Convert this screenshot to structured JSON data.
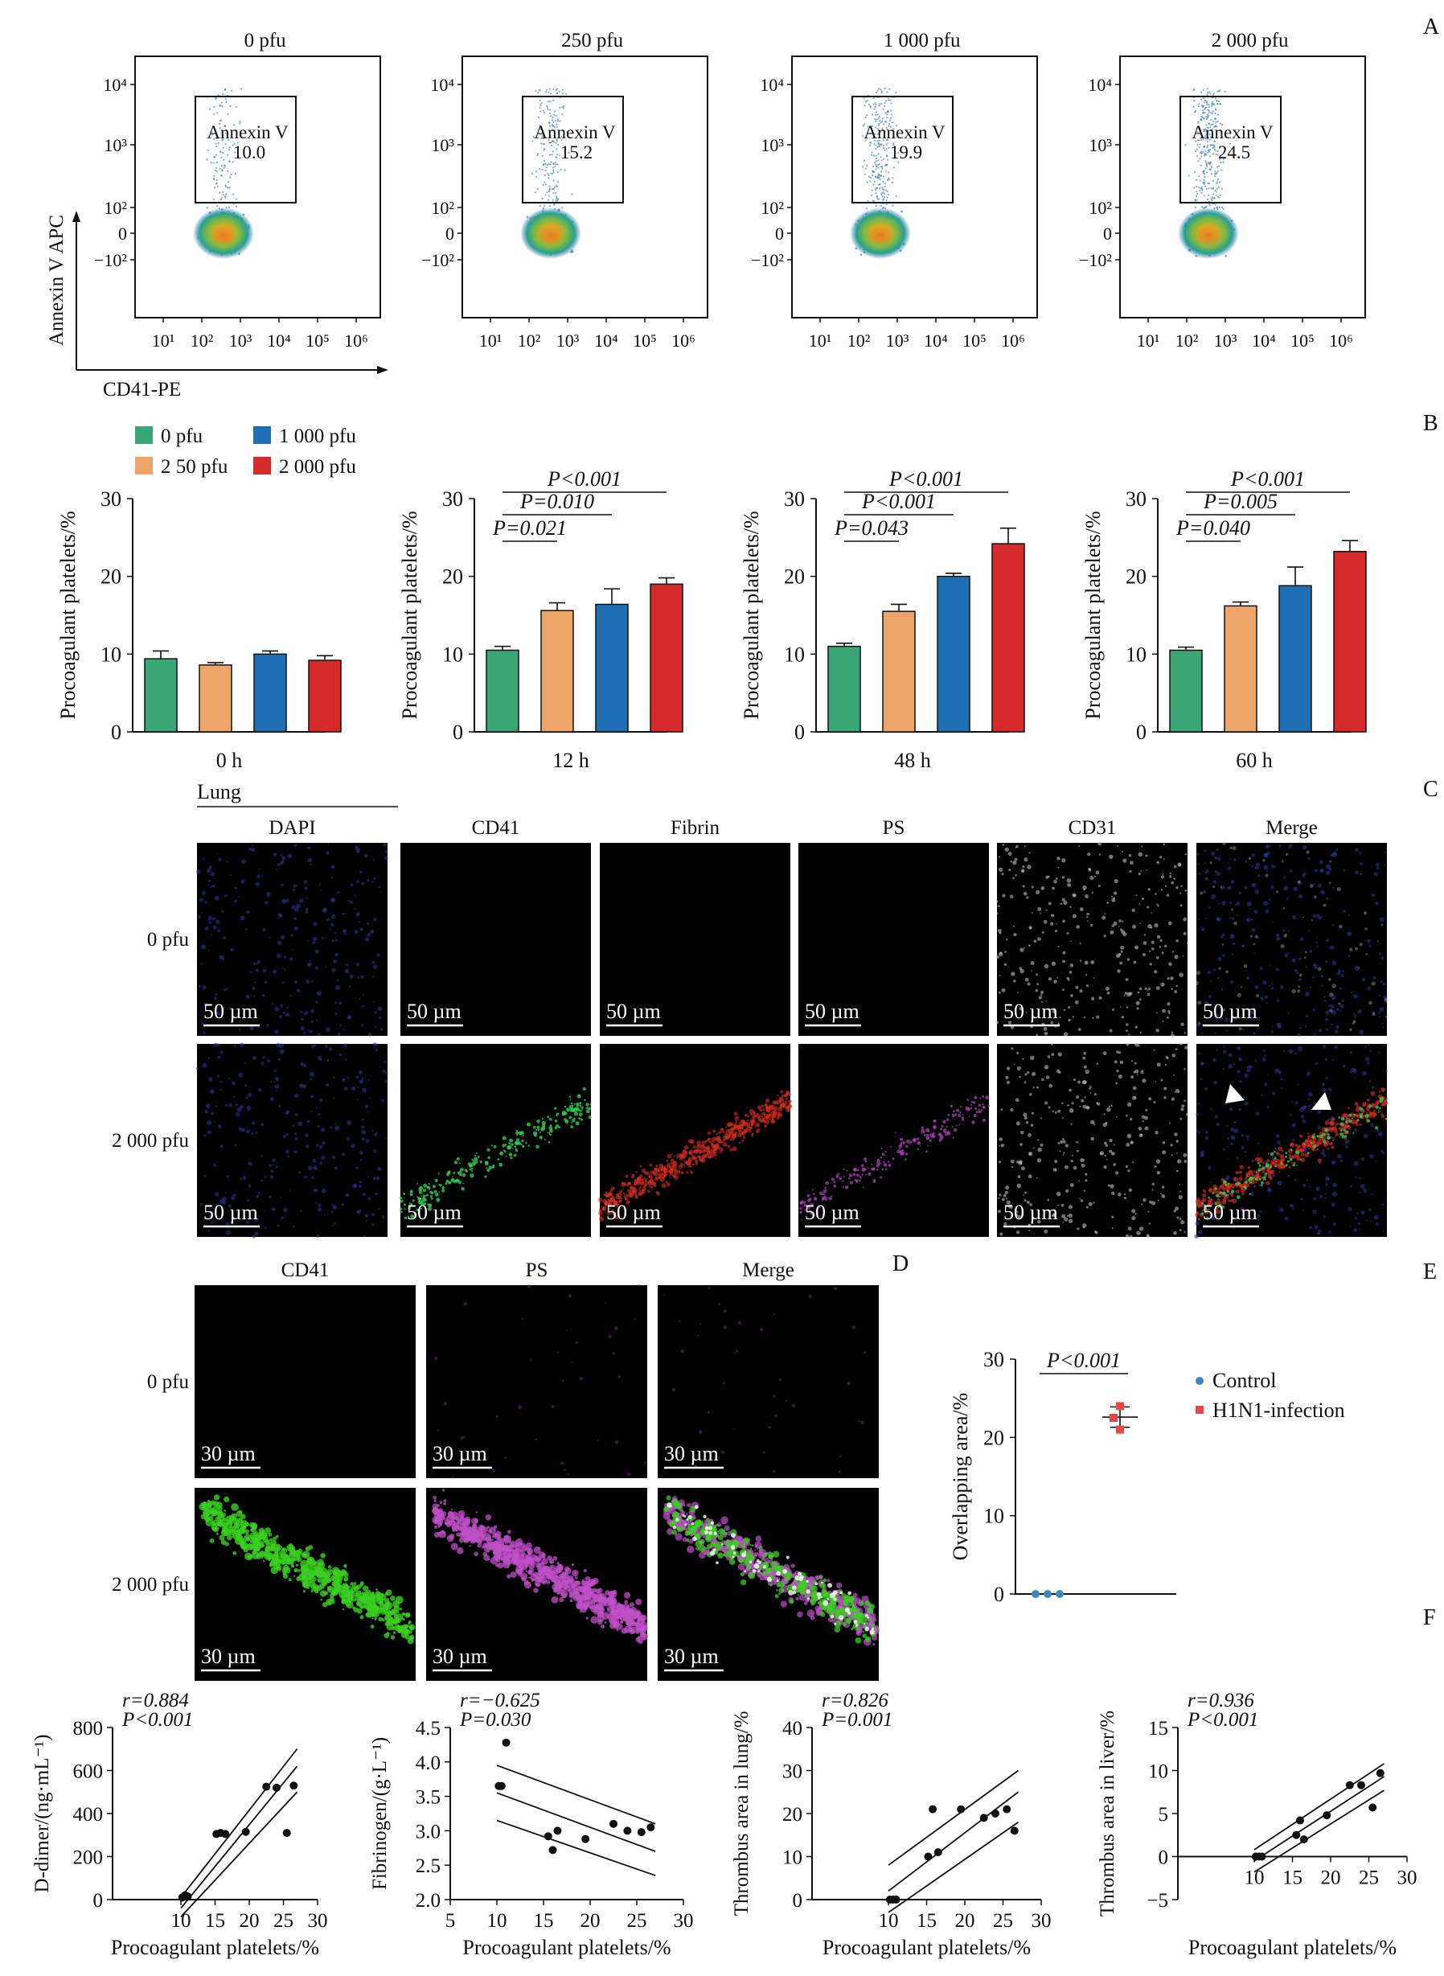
{
  "panel_letters": {
    "A": "A",
    "B": "B",
    "C": "C",
    "D": "D",
    "E": "E",
    "F": "F"
  },
  "flow": {
    "y_axis_label": "Annexin V   APC",
    "x_axis_label": "CD41-PE",
    "gate_label": "Annexin V",
    "x_ticks": [
      "10¹",
      "10²",
      "10³",
      "10⁴",
      "10⁵",
      "10⁶"
    ],
    "y_ticks": [
      "10⁴",
      "10³",
      "10²",
      "0",
      "−10²"
    ],
    "plots": [
      {
        "title": "0 pfu",
        "gate_value": "10.0",
        "value": 10.0
      },
      {
        "title": "250 pfu",
        "gate_value": "15.2",
        "value": 15.2
      },
      {
        "title": "1 000 pfu",
        "gate_value": "19.9",
        "value": 19.9
      },
      {
        "title": "2 000 pfu",
        "gate_value": "24.5",
        "value": 24.5
      }
    ]
  },
  "legend_b": [
    {
      "name": "0 pfu",
      "color": "#3aa676"
    },
    {
      "name": "2 50 pfu",
      "color": "#eea56a"
    },
    {
      "name": "1 000 pfu",
      "color": "#1f6fb4"
    },
    {
      "name": "2 000 pfu",
      "color": "#d62a2a"
    }
  ],
  "chart_data": [
    {
      "type": "bar",
      "title": "",
      "xlabel": "0 h",
      "ylabel": "Procoagulant platelets/%",
      "ylim": [
        0,
        30
      ],
      "yticks": [
        "0",
        "10",
        "20",
        "30"
      ],
      "categories": [
        "0 pfu",
        "2 50 pfu",
        "1 000 pfu",
        "2 000 pfu"
      ],
      "values": [
        9.4,
        8.6,
        10.0,
        9.2
      ],
      "errors": [
        1.0,
        0.3,
        0.4,
        0.6
      ],
      "brackets": []
    },
    {
      "type": "bar",
      "title": "",
      "xlabel": "12 h",
      "ylabel": "Procoagulant platelets/%",
      "ylim": [
        0,
        30
      ],
      "yticks": [
        "0",
        "10",
        "20",
        "30"
      ],
      "categories": [
        "0 pfu",
        "2 50 pfu",
        "1 000 pfu",
        "2 000 pfu"
      ],
      "values": [
        10.5,
        15.6,
        16.4,
        19.0
      ],
      "errors": [
        0.5,
        1.0,
        2.0,
        0.8
      ],
      "brackets": [
        {
          "from": 0,
          "to": 3,
          "label": "P<0.001"
        },
        {
          "from": 0,
          "to": 2,
          "label": "P=0.010"
        },
        {
          "from": 0,
          "to": 1,
          "label": "P=0.021"
        }
      ]
    },
    {
      "type": "bar",
      "title": "",
      "xlabel": "48 h",
      "ylabel": "Procoagulant platelets/%",
      "ylim": [
        0,
        30
      ],
      "yticks": [
        "0",
        "10",
        "20",
        "30"
      ],
      "categories": [
        "0 pfu",
        "2 50 pfu",
        "1 000 pfu",
        "2 000 pfu"
      ],
      "values": [
        11.0,
        15.5,
        20.0,
        24.2
      ],
      "errors": [
        0.4,
        0.9,
        0.4,
        2.0
      ],
      "brackets": [
        {
          "from": 0,
          "to": 3,
          "label": "P<0.001"
        },
        {
          "from": 0,
          "to": 2,
          "label": "P<0.001"
        },
        {
          "from": 0,
          "to": 1,
          "label": "P=0.043"
        }
      ]
    },
    {
      "type": "bar",
      "title": "",
      "xlabel": "60 h",
      "ylabel": "Procoagulant platelets/%",
      "ylim": [
        0,
        30
      ],
      "yticks": [
        "0",
        "10",
        "20",
        "30"
      ],
      "categories": [
        "0 pfu",
        "2 50 pfu",
        "1 000 pfu",
        "2 000 pfu"
      ],
      "values": [
        10.5,
        16.2,
        18.8,
        23.2
      ],
      "errors": [
        0.4,
        0.5,
        2.4,
        1.4
      ],
      "brackets": [
        {
          "from": 0,
          "to": 3,
          "label": "P<0.001"
        },
        {
          "from": 0,
          "to": 2,
          "label": "P=0.005"
        },
        {
          "from": 0,
          "to": 1,
          "label": "P=0.040"
        }
      ]
    },
    {
      "type": "scatter",
      "title": "",
      "xlabel": "",
      "ylabel": "Overlapping area/%",
      "ylim": [
        0,
        30
      ],
      "yticks": [
        "0",
        "10",
        "20",
        "30"
      ],
      "p_label": "P<0.001",
      "series": [
        {
          "name": "Control",
          "color": "#3f86c6",
          "x": [
            1,
            1,
            1
          ],
          "y": [
            0,
            0,
            0
          ],
          "mean": 0
        },
        {
          "name": "H1N1-infection",
          "color": "#e04a4a",
          "x": [
            2,
            2,
            2
          ],
          "y": [
            24.0,
            22.5,
            21.0
          ],
          "mean": 22.6,
          "sem": 1.3
        }
      ]
    },
    {
      "type": "scatter",
      "xlabel": "Procoagulant platelets/%",
      "ylabel": "D-dimer/(ng·mL⁻¹)",
      "xlim": [
        0,
        30
      ],
      "ylim": [
        0,
        800
      ],
      "xticks": [
        "10",
        "15",
        "20",
        "25",
        "30"
      ],
      "yticks": [
        "0",
        "200",
        "400",
        "600",
        "800"
      ],
      "r_label": "r=0.884",
      "p_label": "P<0.001",
      "x": [
        10.2,
        10.6,
        11.0,
        15.2,
        15.8,
        16.5,
        19.5,
        22.5,
        24.0,
        25.5,
        26.5
      ],
      "y": [
        10,
        20,
        15,
        305,
        310,
        305,
        315,
        525,
        520,
        310,
        530
      ],
      "fit": [
        10,
        -40,
        27,
        620
      ],
      "ci_low": [
        10,
        -80,
        27,
        500
      ],
      "ci_high": [
        10,
        10,
        27,
        700
      ]
    },
    {
      "type": "scatter",
      "xlabel": "Procoagulant platelets/%",
      "ylabel": "Fibrinogen/(g·L⁻¹)",
      "xlim": [
        5,
        30
      ],
      "ylim": [
        2.0,
        4.5
      ],
      "xticks": [
        "5",
        "10",
        "15",
        "20",
        "25",
        "30"
      ],
      "yticks": [
        "2.0",
        "2.5",
        "3.0",
        "3.5",
        "4.0",
        "4.5"
      ],
      "r_label": "r=−0.625",
      "p_label": "P=0.030",
      "x": [
        10.2,
        10.5,
        11.0,
        15.5,
        16.0,
        16.5,
        19.5,
        22.5,
        24.0,
        25.5,
        26.5
      ],
      "y": [
        3.65,
        3.65,
        4.28,
        2.92,
        2.72,
        3.0,
        2.88,
        3.1,
        3.0,
        2.98,
        3.05
      ],
      "fit": [
        10,
        3.55,
        27,
        2.7
      ],
      "ci_low": [
        10,
        3.15,
        27,
        2.35
      ],
      "ci_high": [
        10,
        3.95,
        27,
        3.1
      ]
    },
    {
      "type": "scatter",
      "xlabel": "Procoagulant platelets/%",
      "ylabel": "Thrombus area in lung/%",
      "xlim": [
        0,
        30
      ],
      "ylim": [
        0,
        40
      ],
      "xticks": [
        "10",
        "15",
        "20",
        "25",
        "30"
      ],
      "yticks": [
        "0",
        "10",
        "20",
        "30",
        "40"
      ],
      "r_label": "r=0.826",
      "p_label": "P=0.001",
      "x": [
        10.2,
        10.6,
        11.0,
        15.2,
        15.8,
        16.5,
        19.5,
        22.5,
        24.0,
        25.5,
        26.5
      ],
      "y": [
        0,
        0,
        0,
        10,
        21,
        11,
        21,
        19,
        20,
        21,
        16
      ],
      "fit": [
        10,
        2,
        27,
        25
      ],
      "ci_low": [
        10,
        -3,
        27,
        18
      ],
      "ci_high": [
        10,
        8,
        27,
        30
      ]
    },
    {
      "type": "scatter",
      "xlabel": "Procoagulant platelets/%",
      "ylabel": "Thrombus area in liver/%",
      "xlim": [
        0,
        30
      ],
      "ylim": [
        -5,
        15
      ],
      "xticks": [
        "10",
        "15",
        "20",
        "25",
        "30"
      ],
      "yticks": [
        "−5",
        "0",
        "5",
        "10",
        "15"
      ],
      "r_label": "r=0.936",
      "p_label": "P<0.001",
      "x": [
        10.2,
        10.6,
        11.0,
        15.5,
        16.0,
        16.5,
        19.5,
        22.5,
        24.0,
        25.5,
        26.5
      ],
      "y": [
        0,
        0,
        0,
        2.5,
        4.2,
        2.0,
        4.8,
        8.3,
        8.3,
        5.7,
        9.7
      ],
      "fit": [
        10,
        -0.5,
        27,
        9.3
      ],
      "ci_low": [
        10,
        -1.8,
        27,
        7.7
      ],
      "ci_high": [
        10,
        0.8,
        27,
        10.8
      ]
    }
  ],
  "panel_c": {
    "tissue": "Lung",
    "columns": [
      "DAPI",
      "CD41",
      "Fibrin",
      "PS",
      "CD31",
      "Merge"
    ],
    "rows": [
      "0 pfu",
      "2 000 pfu"
    ],
    "scale_bar": "50 µm"
  },
  "panel_d": {
    "columns": [
      "CD41",
      "PS",
      "Merge"
    ],
    "rows": [
      "0 pfu",
      "2 000 pfu"
    ],
    "scale_bar": "30 µm"
  }
}
